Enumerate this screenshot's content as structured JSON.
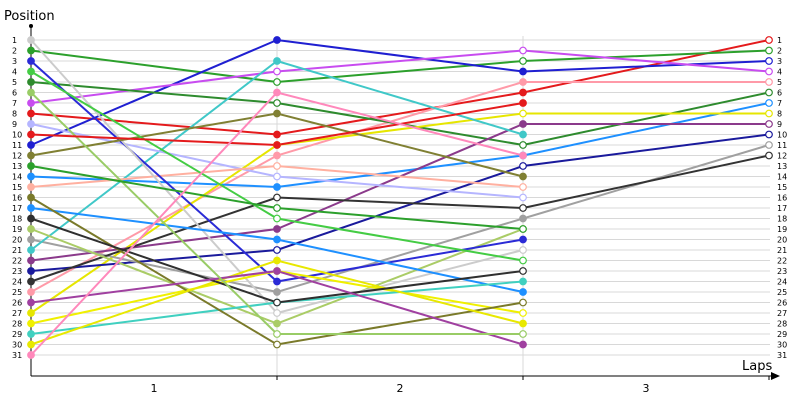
{
  "chart_data": {
    "type": "line",
    "ylabel": "Position",
    "xlabel": "Laps",
    "x": [
      0,
      1,
      2,
      3
    ],
    "xtick_labels": [
      "1",
      "2",
      "3"
    ],
    "ylim": [
      1,
      31
    ],
    "y_inverted": true,
    "yticks": [
      1,
      2,
      3,
      4,
      5,
      6,
      7,
      8,
      9,
      10,
      11,
      12,
      13,
      14,
      15,
      16,
      17,
      18,
      19,
      20,
      21,
      22,
      23,
      24,
      25,
      26,
      27,
      28,
      29,
      30,
      31
    ],
    "grid": true,
    "series": [
      {
        "color": "#e41a1c",
        "values": [
          8,
          10,
          6,
          1
        ]
      },
      {
        "color": "#2ca02c",
        "values": [
          2,
          5,
          3,
          2
        ]
      },
      {
        "color": "#1f1fd1",
        "values": [
          11,
          1,
          4,
          3
        ]
      },
      {
        "color": "#c84cf0",
        "values": [
          7,
          4,
          2,
          4
        ]
      },
      {
        "color": "#ff9aa8",
        "values": [
          25,
          12,
          5,
          5
        ]
      },
      {
        "color": "#2e8b2e",
        "values": [
          5,
          7,
          11,
          6
        ]
      },
      {
        "color": "#1e90ff",
        "values": [
          14,
          15,
          12,
          7
        ]
      },
      {
        "color": "#e6e600",
        "values": [
          27,
          11,
          8,
          8
        ]
      },
      {
        "color": "#8b3a8b",
        "values": [
          22,
          19,
          9,
          9
        ]
      },
      {
        "color": "#1a1a9c",
        "values": [
          23,
          21,
          13,
          10
        ]
      },
      {
        "color": "#a0a0a0",
        "values": [
          20,
          25,
          18,
          11
        ]
      },
      {
        "color": "#333333",
        "values": [
          24,
          16,
          17,
          12
        ]
      },
      {
        "color": "#40c8c8",
        "values": [
          21,
          3,
          10,
          null
        ]
      },
      {
        "color": "#b5b5ff",
        "values": [
          9,
          14,
          16,
          null
        ]
      },
      {
        "color": "#aacc66",
        "values": [
          19,
          28,
          19,
          null
        ]
      },
      {
        "color": "#ffb0a0",
        "values": [
          15,
          13,
          15,
          null
        ]
      },
      {
        "color": "#2b2bd6",
        "values": [
          3,
          24,
          20,
          null
        ]
      },
      {
        "color": "#cccccc",
        "values": [
          1,
          27,
          21,
          null
        ]
      },
      {
        "color": "#808033",
        "values": [
          12,
          8,
          14,
          null
        ]
      },
      {
        "color": "#44cc44",
        "values": [
          4,
          18,
          22,
          null
        ]
      },
      {
        "color": "#1e90ff",
        "values": [
          17,
          20,
          25,
          null
        ]
      },
      {
        "color": "#f0f000",
        "values": [
          28,
          23,
          27,
          null
        ]
      },
      {
        "color": "#40d0c0",
        "values": [
          29,
          26,
          24,
          null
        ]
      },
      {
        "color": "#7a7a2a",
        "values": [
          16,
          30,
          26,
          null
        ]
      },
      {
        "color": "#e8e800",
        "values": [
          30,
          22,
          28,
          null
        ]
      },
      {
        "color": "#2f2f2f",
        "values": [
          18,
          26,
          23,
          null
        ]
      },
      {
        "color": "#a040a0",
        "values": [
          26,
          23,
          30,
          null
        ]
      },
      {
        "color": "#99cc66",
        "values": [
          6,
          29,
          29,
          null
        ]
      },
      {
        "color": "#e41a1c",
        "values": [
          10,
          11,
          7,
          null
        ]
      },
      {
        "color": "#2ca02c",
        "values": [
          13,
          17,
          19,
          null
        ]
      },
      {
        "color": "#ff88bb",
        "values": [
          31,
          6,
          12,
          null
        ]
      }
    ]
  }
}
